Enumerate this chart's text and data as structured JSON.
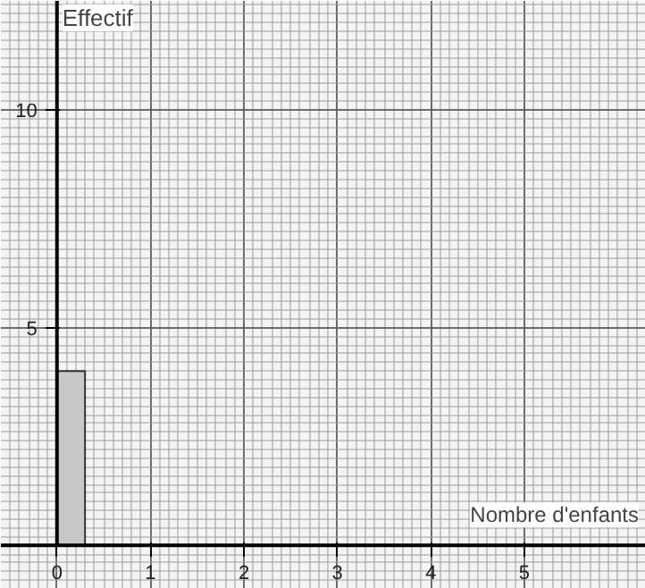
{
  "chart_data": {
    "type": "histogram",
    "xlabel": "Nombre d'enfants",
    "ylabel": "Effectif",
    "bins": [
      0,
      0.3
    ],
    "values": [
      4
    ],
    "color": "#c8c8c8",
    "xlim": [
      -0.6,
      6.3
    ],
    "ylim": [
      -1,
      12.5
    ],
    "xticks": [
      0,
      1,
      2,
      3,
      4,
      5
    ],
    "yticks": [
      5,
      10
    ],
    "grid": true
  }
}
